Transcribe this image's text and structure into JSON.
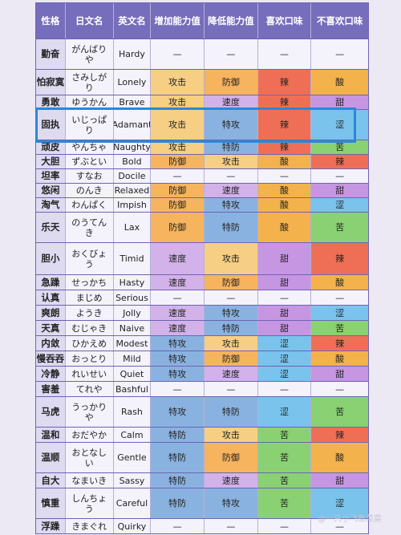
{
  "colors": {
    "攻击": "#f6cf84",
    "防御": "#f6b45f",
    "速度": "#d3b2ea",
    "特攻": "#8ab2e0",
    "特防": "#8ab2e0",
    "辣": "#ef6f56",
    "酸": "#f3b24c",
    "甜": "#c796e3",
    "涩": "#79c3ec",
    "苦": "#8ad173",
    "—": "#f4f2fb"
  },
  "header": [
    "性格",
    "日文名",
    "英文名",
    "增加能力值",
    "降低能力值",
    "喜欢口味",
    "不喜欢口味"
  ],
  "rows": [
    {
      "name": "勤奋",
      "jp": "がんばりや",
      "en": "Hardy",
      "up": "—",
      "down": "—",
      "like": "—",
      "dislike": "—"
    },
    {
      "name": "怕寂寞",
      "jp": "さみしがり",
      "en": "Lonely",
      "up": "攻击",
      "down": "防御",
      "like": "辣",
      "dislike": "酸"
    },
    {
      "name": "勇敢",
      "jp": "ゆうかん",
      "en": "Brave",
      "up": "攻击",
      "down": "速度",
      "like": "辣",
      "dislike": "甜"
    },
    {
      "name": "固执",
      "jp": "いじっぱり",
      "en": "Adamant",
      "up": "攻击",
      "down": "特攻",
      "like": "辣",
      "dislike": "涩"
    },
    {
      "name": "顽皮",
      "jp": "やんちゃ",
      "en": "Naughty",
      "up": "攻击",
      "down": "特防",
      "like": "辣",
      "dislike": "苦"
    },
    {
      "name": "大胆",
      "jp": "ずぶとい",
      "en": "Bold",
      "up": "防御",
      "down": "攻击",
      "like": "酸",
      "dislike": "辣"
    },
    {
      "name": "坦率",
      "jp": "すなお",
      "en": "Docile",
      "up": "—",
      "down": "—",
      "like": "—",
      "dislike": "—"
    },
    {
      "name": "悠闲",
      "jp": "のんき",
      "en": "Relaxed",
      "up": "防御",
      "down": "速度",
      "like": "酸",
      "dislike": "甜"
    },
    {
      "name": "淘气",
      "jp": "わんぱく",
      "en": "Impish",
      "up": "防御",
      "down": "特攻",
      "like": "酸",
      "dislike": "涩"
    },
    {
      "name": "乐天",
      "jp": "のうてんき",
      "en": "Lax",
      "up": "防御",
      "down": "特防",
      "like": "酸",
      "dislike": "苦"
    },
    {
      "name": "胆小",
      "jp": "おくびょう",
      "en": "Timid",
      "up": "速度",
      "down": "攻击",
      "like": "甜",
      "dislike": "辣"
    },
    {
      "name": "急躁",
      "jp": "せっかち",
      "en": "Hasty",
      "up": "速度",
      "down": "防御",
      "like": "甜",
      "dislike": "酸"
    },
    {
      "name": "认真",
      "jp": "まじめ",
      "en": "Serious",
      "up": "—",
      "down": "—",
      "like": "—",
      "dislike": "—"
    },
    {
      "name": "爽朗",
      "jp": "ようき",
      "en": "Jolly",
      "up": "速度",
      "down": "特攻",
      "like": "甜",
      "dislike": "涩"
    },
    {
      "name": "天真",
      "jp": "むじゃき",
      "en": "Naive",
      "up": "速度",
      "down": "特防",
      "like": "甜",
      "dislike": "苦"
    },
    {
      "name": "内敛",
      "jp": "ひかえめ",
      "en": "Modest",
      "up": "特攻",
      "down": "攻击",
      "like": "涩",
      "dislike": "辣"
    },
    {
      "name": "慢吞吞",
      "jp": "おっとり",
      "en": "Mild",
      "up": "特攻",
      "down": "防御",
      "like": "涩",
      "dislike": "酸"
    },
    {
      "name": "冷静",
      "jp": "れいせい",
      "en": "Quiet",
      "up": "特攻",
      "down": "速度",
      "like": "涩",
      "dislike": "甜"
    },
    {
      "name": "害羞",
      "jp": "てれや",
      "en": "Bashful",
      "up": "—",
      "down": "—",
      "like": "—",
      "dislike": "—"
    },
    {
      "name": "马虎",
      "jp": "うっかりや",
      "en": "Rash",
      "up": "特攻",
      "down": "特防",
      "like": "涩",
      "dislike": "苦"
    },
    {
      "name": "温和",
      "jp": "おだやか",
      "en": "Calm",
      "up": "特防",
      "down": "攻击",
      "like": "苦",
      "dislike": "辣"
    },
    {
      "name": "温顺",
      "jp": "おとなしい",
      "en": "Gentle",
      "up": "特防",
      "down": "防御",
      "like": "苦",
      "dislike": "酸"
    },
    {
      "name": "自大",
      "jp": "なまいき",
      "en": "Sassy",
      "up": "特防",
      "down": "速度",
      "like": "苦",
      "dislike": "甜"
    },
    {
      "name": "慎重",
      "jp": "しんちょう",
      "en": "Careful",
      "up": "特防",
      "down": "特攻",
      "like": "苦",
      "dislike": "涩"
    },
    {
      "name": "浮躁",
      "jp": "きまぐれ",
      "en": "Quirky",
      "up": "—",
      "down": "—",
      "like": "—",
      "dislike": "—"
    }
  ],
  "highlight_row": "固执",
  "watermark": "@一只小飞象菜菜"
}
